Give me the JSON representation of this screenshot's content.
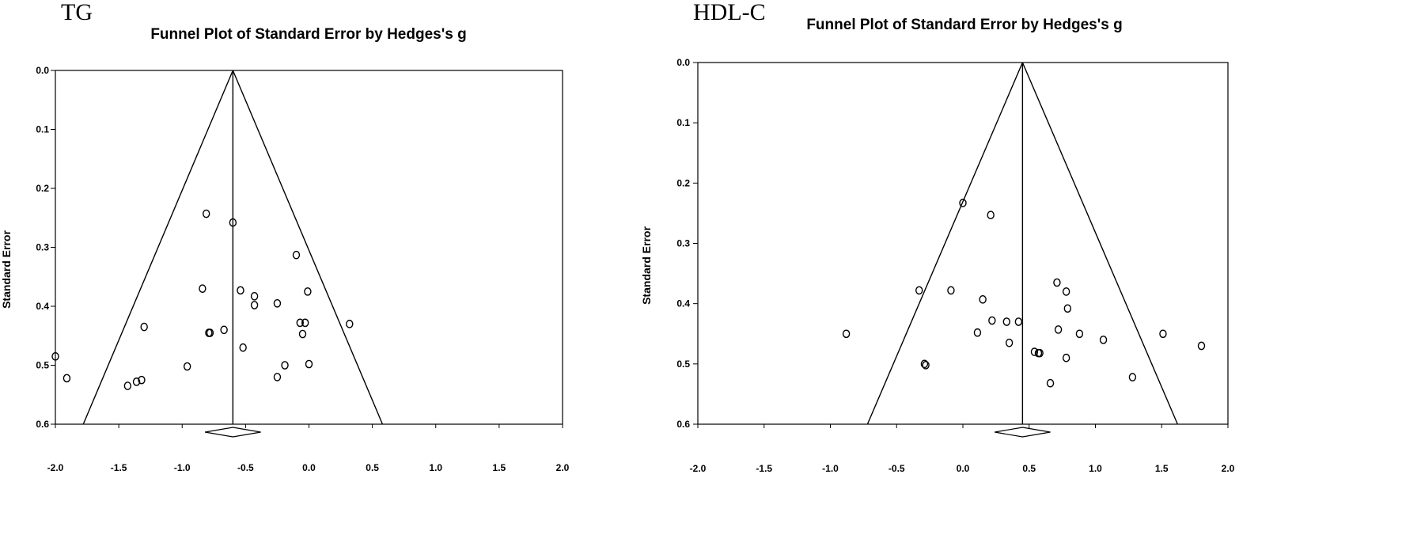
{
  "chart_data": [
    {
      "id": "tg",
      "type": "scatter",
      "panel_label": "TG",
      "title": "Funnel Plot of Standard Error by Hedges's g",
      "xlabel": "",
      "ylabel": "Standard Error",
      "xlim": [
        -2.0,
        2.0
      ],
      "ylim": [
        0.0,
        0.6
      ],
      "y_inverted": true,
      "x_ticks": [
        "-2.0",
        "-1.5",
        "-1.0",
        "-0.5",
        "0.0",
        "0.5",
        "1.0",
        "1.5",
        "2.0"
      ],
      "y_ticks": [
        "0.0",
        "0.1",
        "0.2",
        "0.3",
        "0.4",
        "0.5",
        "0.6"
      ],
      "summary_effect": -0.6,
      "summary_ci": [
        -0.82,
        -0.38
      ],
      "funnel": {
        "apex": [
          -0.6,
          0.0
        ],
        "left_at_bottom": -1.78,
        "right_at_bottom": 0.58
      },
      "points": [
        {
          "x": -2.0,
          "y": 0.485
        },
        {
          "x": -1.91,
          "y": 0.522
        },
        {
          "x": -1.43,
          "y": 0.535
        },
        {
          "x": -1.36,
          "y": 0.528
        },
        {
          "x": -1.32,
          "y": 0.525
        },
        {
          "x": -1.3,
          "y": 0.435
        },
        {
          "x": -0.96,
          "y": 0.502
        },
        {
          "x": -0.84,
          "y": 0.37
        },
        {
          "x": -0.81,
          "y": 0.243
        },
        {
          "x": -0.79,
          "y": 0.445
        },
        {
          "x": -0.78,
          "y": 0.445
        },
        {
          "x": -0.67,
          "y": 0.44
        },
        {
          "x": -0.6,
          "y": 0.258
        },
        {
          "x": -0.54,
          "y": 0.373
        },
        {
          "x": -0.52,
          "y": 0.47
        },
        {
          "x": -0.43,
          "y": 0.383
        },
        {
          "x": -0.43,
          "y": 0.398
        },
        {
          "x": -0.25,
          "y": 0.395
        },
        {
          "x": -0.25,
          "y": 0.52
        },
        {
          "x": -0.19,
          "y": 0.5
        },
        {
          "x": -0.1,
          "y": 0.313
        },
        {
          "x": -0.07,
          "y": 0.428
        },
        {
          "x": -0.05,
          "y": 0.447
        },
        {
          "x": -0.03,
          "y": 0.428
        },
        {
          "x": -0.01,
          "y": 0.375
        },
        {
          "x": 0.0,
          "y": 0.498
        },
        {
          "x": 0.32,
          "y": 0.43
        }
      ]
    },
    {
      "id": "hdl",
      "type": "scatter",
      "panel_label": "HDL-C",
      "title": "Funnel Plot of Standard Error by Hedges's g",
      "xlabel": "",
      "ylabel": "Standard Error",
      "xlim": [
        -2.0,
        2.0
      ],
      "ylim": [
        0.0,
        0.6
      ],
      "y_inverted": true,
      "x_ticks": [
        "-2.0",
        "-1.5",
        "-1.0",
        "-0.5",
        "0.0",
        "0.5",
        "1.0",
        "1.5",
        "2.0"
      ],
      "y_ticks": [
        "0.0",
        "0.1",
        "0.2",
        "0.3",
        "0.4",
        "0.5",
        "0.6"
      ],
      "summary_effect": 0.45,
      "summary_ci": [
        0.24,
        0.66
      ],
      "funnel": {
        "apex": [
          0.45,
          0.0
        ],
        "left_at_bottom": -0.72,
        "right_at_bottom": 1.62
      },
      "points": [
        {
          "x": -0.88,
          "y": 0.45
        },
        {
          "x": -0.33,
          "y": 0.378
        },
        {
          "x": -0.28,
          "y": 0.502
        },
        {
          "x": -0.29,
          "y": 0.5
        },
        {
          "x": -0.09,
          "y": 0.378
        },
        {
          "x": 0.0,
          "y": 0.233
        },
        {
          "x": 0.11,
          "y": 0.448
        },
        {
          "x": 0.15,
          "y": 0.393
        },
        {
          "x": 0.21,
          "y": 0.253
        },
        {
          "x": 0.22,
          "y": 0.428
        },
        {
          "x": 0.33,
          "y": 0.43
        },
        {
          "x": 0.35,
          "y": 0.465
        },
        {
          "x": 0.42,
          "y": 0.43
        },
        {
          "x": 0.54,
          "y": 0.48
        },
        {
          "x": 0.57,
          "y": 0.482
        },
        {
          "x": 0.58,
          "y": 0.482
        },
        {
          "x": 0.66,
          "y": 0.532
        },
        {
          "x": 0.71,
          "y": 0.365
        },
        {
          "x": 0.72,
          "y": 0.443
        },
        {
          "x": 0.78,
          "y": 0.38
        },
        {
          "x": 0.78,
          "y": 0.49
        },
        {
          "x": 0.79,
          "y": 0.408
        },
        {
          "x": 0.88,
          "y": 0.45
        },
        {
          "x": 1.06,
          "y": 0.46
        },
        {
          "x": 1.28,
          "y": 0.522
        },
        {
          "x": 1.51,
          "y": 0.45
        },
        {
          "x": 1.8,
          "y": 0.47
        }
      ]
    }
  ]
}
